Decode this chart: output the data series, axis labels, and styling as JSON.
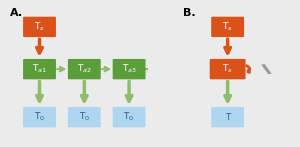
{
  "bg_color": "#ebebeb",
  "orange_box_color": "#d9521a",
  "green_box_color": "#5a9e3a",
  "blue_box_color": "#aed6f1",
  "orange_arrow_color": "#d9521a",
  "light_green_arrow_color": "#8fbc6a",
  "mirror_color": "#999999",
  "label_A": "A.",
  "label_B": "B.",
  "ts_label": "T$_s$",
  "ta1_label": "T$_{a1}$",
  "ta2_label": "T$_{a2}$",
  "ta3_label": "T$_{a3}$",
  "t0_label": "T$_0$",
  "ts2_label": "T$_s$",
  "t_label": "T",
  "blue_text_color": "#2c5f8a"
}
